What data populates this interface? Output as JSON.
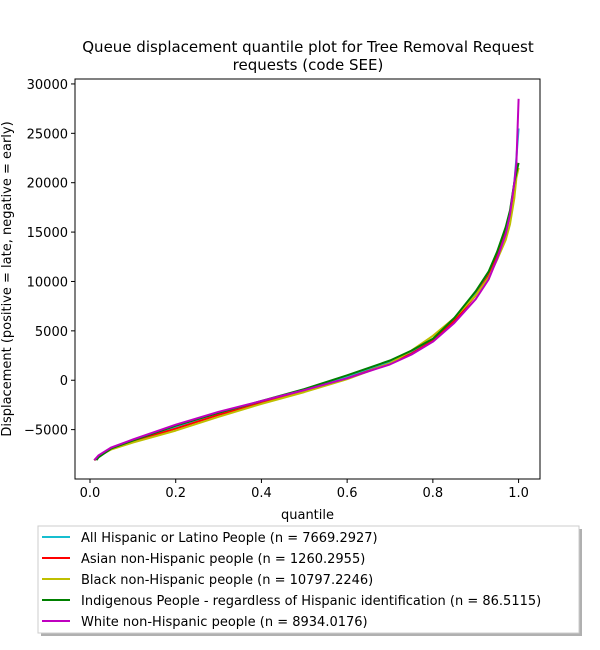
{
  "chart_data": {
    "type": "line",
    "title_line1": "Queue displacement quantile plot for Tree Removal Request",
    "title_line2": "requests (code SEE)",
    "xlabel": "quantile",
    "ylabel": "Displacement (positive = late, negative = early)",
    "xlim": [
      -0.035,
      1.05
    ],
    "ylim": [
      -10000,
      30500
    ],
    "xticks": [
      0.0,
      0.2,
      0.4,
      0.6,
      0.8,
      1.0
    ],
    "xtick_labels": [
      "0.0",
      "0.2",
      "0.4",
      "0.6",
      "0.8",
      "1.0"
    ],
    "yticks": [
      -5000,
      0,
      5000,
      10000,
      15000,
      20000,
      25000,
      30000
    ],
    "ytick_labels": [
      "−5000",
      "0",
      "5000",
      "10000",
      "15000",
      "20000",
      "25000",
      "30000"
    ],
    "grid": false,
    "legend_position": "below the axes",
    "series": [
      {
        "name": "All Hispanic or Latino People (n = 7669.2927)",
        "color": "#17becf",
        "x": [
          0.01,
          0.02,
          0.05,
          0.1,
          0.2,
          0.3,
          0.4,
          0.5,
          0.6,
          0.7,
          0.75,
          0.8,
          0.85,
          0.9,
          0.93,
          0.95,
          0.97,
          0.98,
          0.99,
          0.995,
          1.0
        ],
        "y": [
          -8100,
          -7700,
          -6900,
          -6100,
          -4700,
          -3300,
          -2200,
          -1000,
          300,
          1900,
          2900,
          4200,
          6200,
          8800,
          10800,
          12800,
          15200,
          17000,
          20000,
          22500,
          25500
        ]
      },
      {
        "name": "Asian non-Hispanic people (n = 1260.2955)",
        "color": "#ff0000",
        "x": [
          0.01,
          0.02,
          0.05,
          0.1,
          0.2,
          0.3,
          0.4,
          0.5,
          0.6,
          0.7,
          0.75,
          0.8,
          0.85,
          0.9,
          0.93,
          0.95,
          0.97,
          0.98,
          0.99,
          0.995,
          1.0
        ],
        "y": [
          -8100,
          -7700,
          -6900,
          -6200,
          -4900,
          -3500,
          -2300,
          -1100,
          200,
          1700,
          2700,
          4000,
          6000,
          8600,
          10600,
          12600,
          15000,
          16800,
          19600,
          21500,
          22000
        ]
      },
      {
        "name": "Black non-Hispanic people (n = 10797.2246)",
        "color": "#bfbf00",
        "x": [
          0.01,
          0.02,
          0.05,
          0.1,
          0.2,
          0.3,
          0.4,
          0.5,
          0.6,
          0.7,
          0.75,
          0.8,
          0.85,
          0.9,
          0.93,
          0.95,
          0.97,
          0.98,
          0.99,
          0.995,
          1.0
        ],
        "y": [
          -8100,
          -7700,
          -7000,
          -6300,
          -5100,
          -3700,
          -2400,
          -1200,
          100,
          1700,
          3000,
          4500,
          6300,
          8600,
          10400,
          12200,
          14200,
          15800,
          18400,
          20500,
          21500
        ]
      },
      {
        "name": "Indigenous People - regardless of Hispanic identification (n = 86.5115)",
        "color": "#008000",
        "x": [
          0.015,
          0.02,
          0.05,
          0.1,
          0.2,
          0.3,
          0.4,
          0.5,
          0.6,
          0.7,
          0.75,
          0.8,
          0.85,
          0.9,
          0.93,
          0.95,
          0.97,
          0.98,
          0.99,
          0.995,
          1.0
        ],
        "y": [
          -8100,
          -7800,
          -6900,
          -6100,
          -4600,
          -3300,
          -2100,
          -900,
          500,
          2000,
          3000,
          4200,
          6300,
          9000,
          11000,
          13000,
          15500,
          17200,
          20000,
          21000,
          22000
        ]
      },
      {
        "name": "White non-Hispanic people (n = 8934.0176)",
        "color": "#bf00bf",
        "x": [
          0.01,
          0.02,
          0.05,
          0.1,
          0.2,
          0.3,
          0.4,
          0.5,
          0.6,
          0.7,
          0.75,
          0.8,
          0.85,
          0.9,
          0.93,
          0.95,
          0.97,
          0.98,
          0.99,
          0.995,
          1.0
        ],
        "y": [
          -8100,
          -7600,
          -6800,
          -6000,
          -4500,
          -3200,
          -2100,
          -1000,
          200,
          1600,
          2600,
          3900,
          5800,
          8200,
          10200,
          12300,
          14800,
          16800,
          20000,
          22000,
          28500
        ]
      }
    ]
  }
}
